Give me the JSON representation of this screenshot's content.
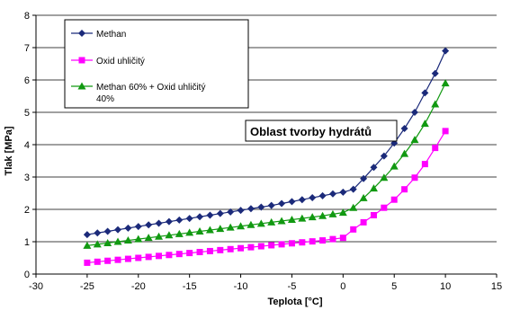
{
  "chart_data": {
    "type": "line",
    "title": "",
    "xlabel": "Teplota [°C]",
    "ylabel": "Tlak [MPa]",
    "xlim": [
      -30,
      15
    ],
    "ylim": [
      0,
      8
    ],
    "x_ticks": [
      -30,
      -25,
      -20,
      -15,
      -10,
      -5,
      0,
      5,
      10,
      15
    ],
    "y_ticks": [
      0,
      1,
      2,
      3,
      4,
      5,
      6,
      7,
      8
    ],
    "grid": {
      "horizontal": true,
      "vertical": false
    },
    "legend_position": "top-left",
    "annotation": "Oblast tvorby hydrátů",
    "x": [
      -25,
      -24,
      -23,
      -22,
      -21,
      -20,
      -19,
      -18,
      -17,
      -16,
      -15,
      -14,
      -13,
      -12,
      -11,
      -10,
      -9,
      -8,
      -7,
      -6,
      -5,
      -4,
      -3,
      -2,
      -1,
      0,
      1,
      2,
      3,
      4,
      5,
      6,
      7,
      8,
      9,
      10
    ],
    "series": [
      {
        "name": "Methan",
        "color": "#1b2a7a",
        "marker": "diamond",
        "values": [
          1.22,
          1.27,
          1.32,
          1.37,
          1.42,
          1.47,
          1.52,
          1.57,
          1.62,
          1.67,
          1.72,
          1.77,
          1.82,
          1.87,
          1.92,
          1.97,
          2.02,
          2.07,
          2.12,
          2.18,
          2.24,
          2.3,
          2.36,
          2.42,
          2.48,
          2.53,
          2.62,
          2.95,
          3.3,
          3.65,
          4.05,
          4.5,
          5.0,
          5.6,
          6.2,
          6.9
        ]
      },
      {
        "name": "Oxid uhličitý",
        "color": "#ff00ff",
        "marker": "square",
        "values": [
          0.35,
          0.38,
          0.41,
          0.44,
          0.47,
          0.5,
          0.53,
          0.56,
          0.59,
          0.62,
          0.65,
          0.68,
          0.71,
          0.74,
          0.77,
          0.8,
          0.83,
          0.86,
          0.89,
          0.92,
          0.95,
          0.98,
          1.01,
          1.04,
          1.08,
          1.12,
          1.38,
          1.6,
          1.82,
          2.05,
          2.3,
          2.62,
          2.98,
          3.4,
          3.9,
          4.42
        ]
      },
      {
        "name": "Methan 60% + Oxid uhličitý 40%",
        "name_lines": [
          "Methan 60% + Oxid uhličitý",
          "40%"
        ],
        "color": "#119911",
        "marker": "triangle",
        "values": [
          0.88,
          0.92,
          0.96,
          1.0,
          1.04,
          1.08,
          1.12,
          1.16,
          1.2,
          1.24,
          1.28,
          1.32,
          1.36,
          1.4,
          1.44,
          1.48,
          1.52,
          1.56,
          1.6,
          1.64,
          1.68,
          1.72,
          1.76,
          1.8,
          1.85,
          1.9,
          2.05,
          2.35,
          2.65,
          2.98,
          3.33,
          3.72,
          4.15,
          4.65,
          5.25,
          5.9
        ]
      }
    ]
  }
}
